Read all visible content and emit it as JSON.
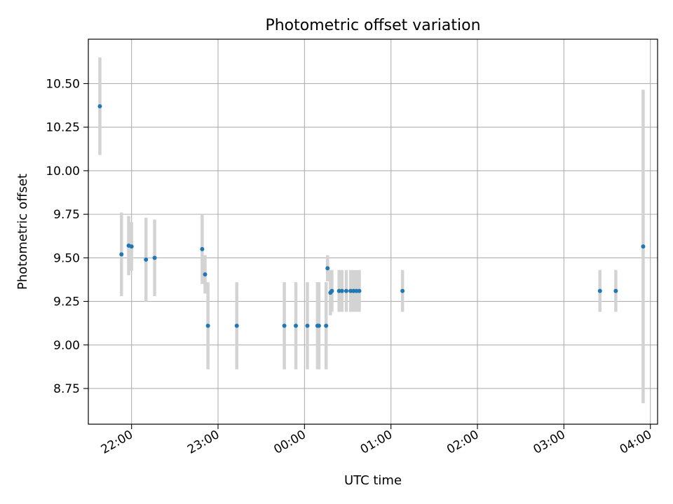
{
  "chart_data": {
    "type": "scatter",
    "title": "Photometric offset variation",
    "xlabel": "UTC time",
    "ylabel": "Photometric offset",
    "x_axis_kind": "time",
    "x_start_label": "21:30",
    "x_end_label": "04:05",
    "ylim": [
      8.545,
      10.755
    ],
    "grid": true,
    "legend": "none",
    "x_ticks": [
      "22:00",
      "23:00",
      "00:00",
      "01:00",
      "02:00",
      "03:00",
      "04:00"
    ],
    "y_ticks": [
      8.75,
      9.0,
      9.25,
      9.5,
      9.75,
      10.0,
      10.25,
      10.5
    ],
    "y_tick_labels": [
      "8.75",
      "9.00",
      "9.25",
      "9.50",
      "9.75",
      "10.00",
      "10.25",
      "10.50"
    ],
    "series": [
      {
        "marker_color": "#1f77b4",
        "errorbar_color": "#d3d3d3",
        "points": [
          {
            "x": "21:38",
            "y": 10.37,
            "yerr": 0.28
          },
          {
            "x": "21:53",
            "y": 9.52,
            "yerr": 0.24
          },
          {
            "x": "21:58",
            "y": 9.57,
            "yerr": 0.17
          },
          {
            "x": "22:00",
            "y": 9.565,
            "yerr": 0.14
          },
          {
            "x": "22:10",
            "y": 9.49,
            "yerr": 0.24
          },
          {
            "x": "22:16",
            "y": 9.5,
            "yerr": 0.22
          },
          {
            "x": "22:49",
            "y": 9.55,
            "yerr": 0.2
          },
          {
            "x": "22:51",
            "y": 9.405,
            "yerr": 0.11
          },
          {
            "x": "22:53",
            "y": 9.11,
            "yerr": 0.25
          },
          {
            "x": "23:13",
            "y": 9.11,
            "yerr": 0.25
          },
          {
            "x": "23:46",
            "y": 9.11,
            "yerr": 0.25
          },
          {
            "x": "23:54",
            "y": 9.11,
            "yerr": 0.25
          },
          {
            "x": "00:02",
            "y": 9.11,
            "yerr": 0.25
          },
          {
            "x": "00:09",
            "y": 9.11,
            "yerr": 0.25
          },
          {
            "x": "00:10",
            "y": 9.11,
            "yerr": 0.25
          },
          {
            "x": "00:15",
            "y": 9.11,
            "yerr": 0.25
          },
          {
            "x": "00:16",
            "y": 9.44,
            "yerr": 0.075
          },
          {
            "x": "00:18",
            "y": 9.3,
            "yerr": 0.13
          },
          {
            "x": "00:19",
            "y": 9.31,
            "yerr": 0.12
          },
          {
            "x": "00:24",
            "y": 9.31,
            "yerr": 0.12
          },
          {
            "x": "00:26",
            "y": 9.31,
            "yerr": 0.12
          },
          {
            "x": "00:29",
            "y": 9.31,
            "yerr": 0.12
          },
          {
            "x": "00:32",
            "y": 9.31,
            "yerr": 0.12
          },
          {
            "x": "00:34",
            "y": 9.31,
            "yerr": 0.12
          },
          {
            "x": "00:36",
            "y": 9.31,
            "yerr": 0.12
          },
          {
            "x": "00:38",
            "y": 9.31,
            "yerr": 0.12
          },
          {
            "x": "01:08",
            "y": 9.31,
            "yerr": 0.12
          },
          {
            "x": "03:25",
            "y": 9.31,
            "yerr": 0.12
          },
          {
            "x": "03:36",
            "y": 9.31,
            "yerr": 0.12
          },
          {
            "x": "03:55",
            "y": 9.565,
            "yerr": 0.9
          }
        ]
      }
    ]
  }
}
